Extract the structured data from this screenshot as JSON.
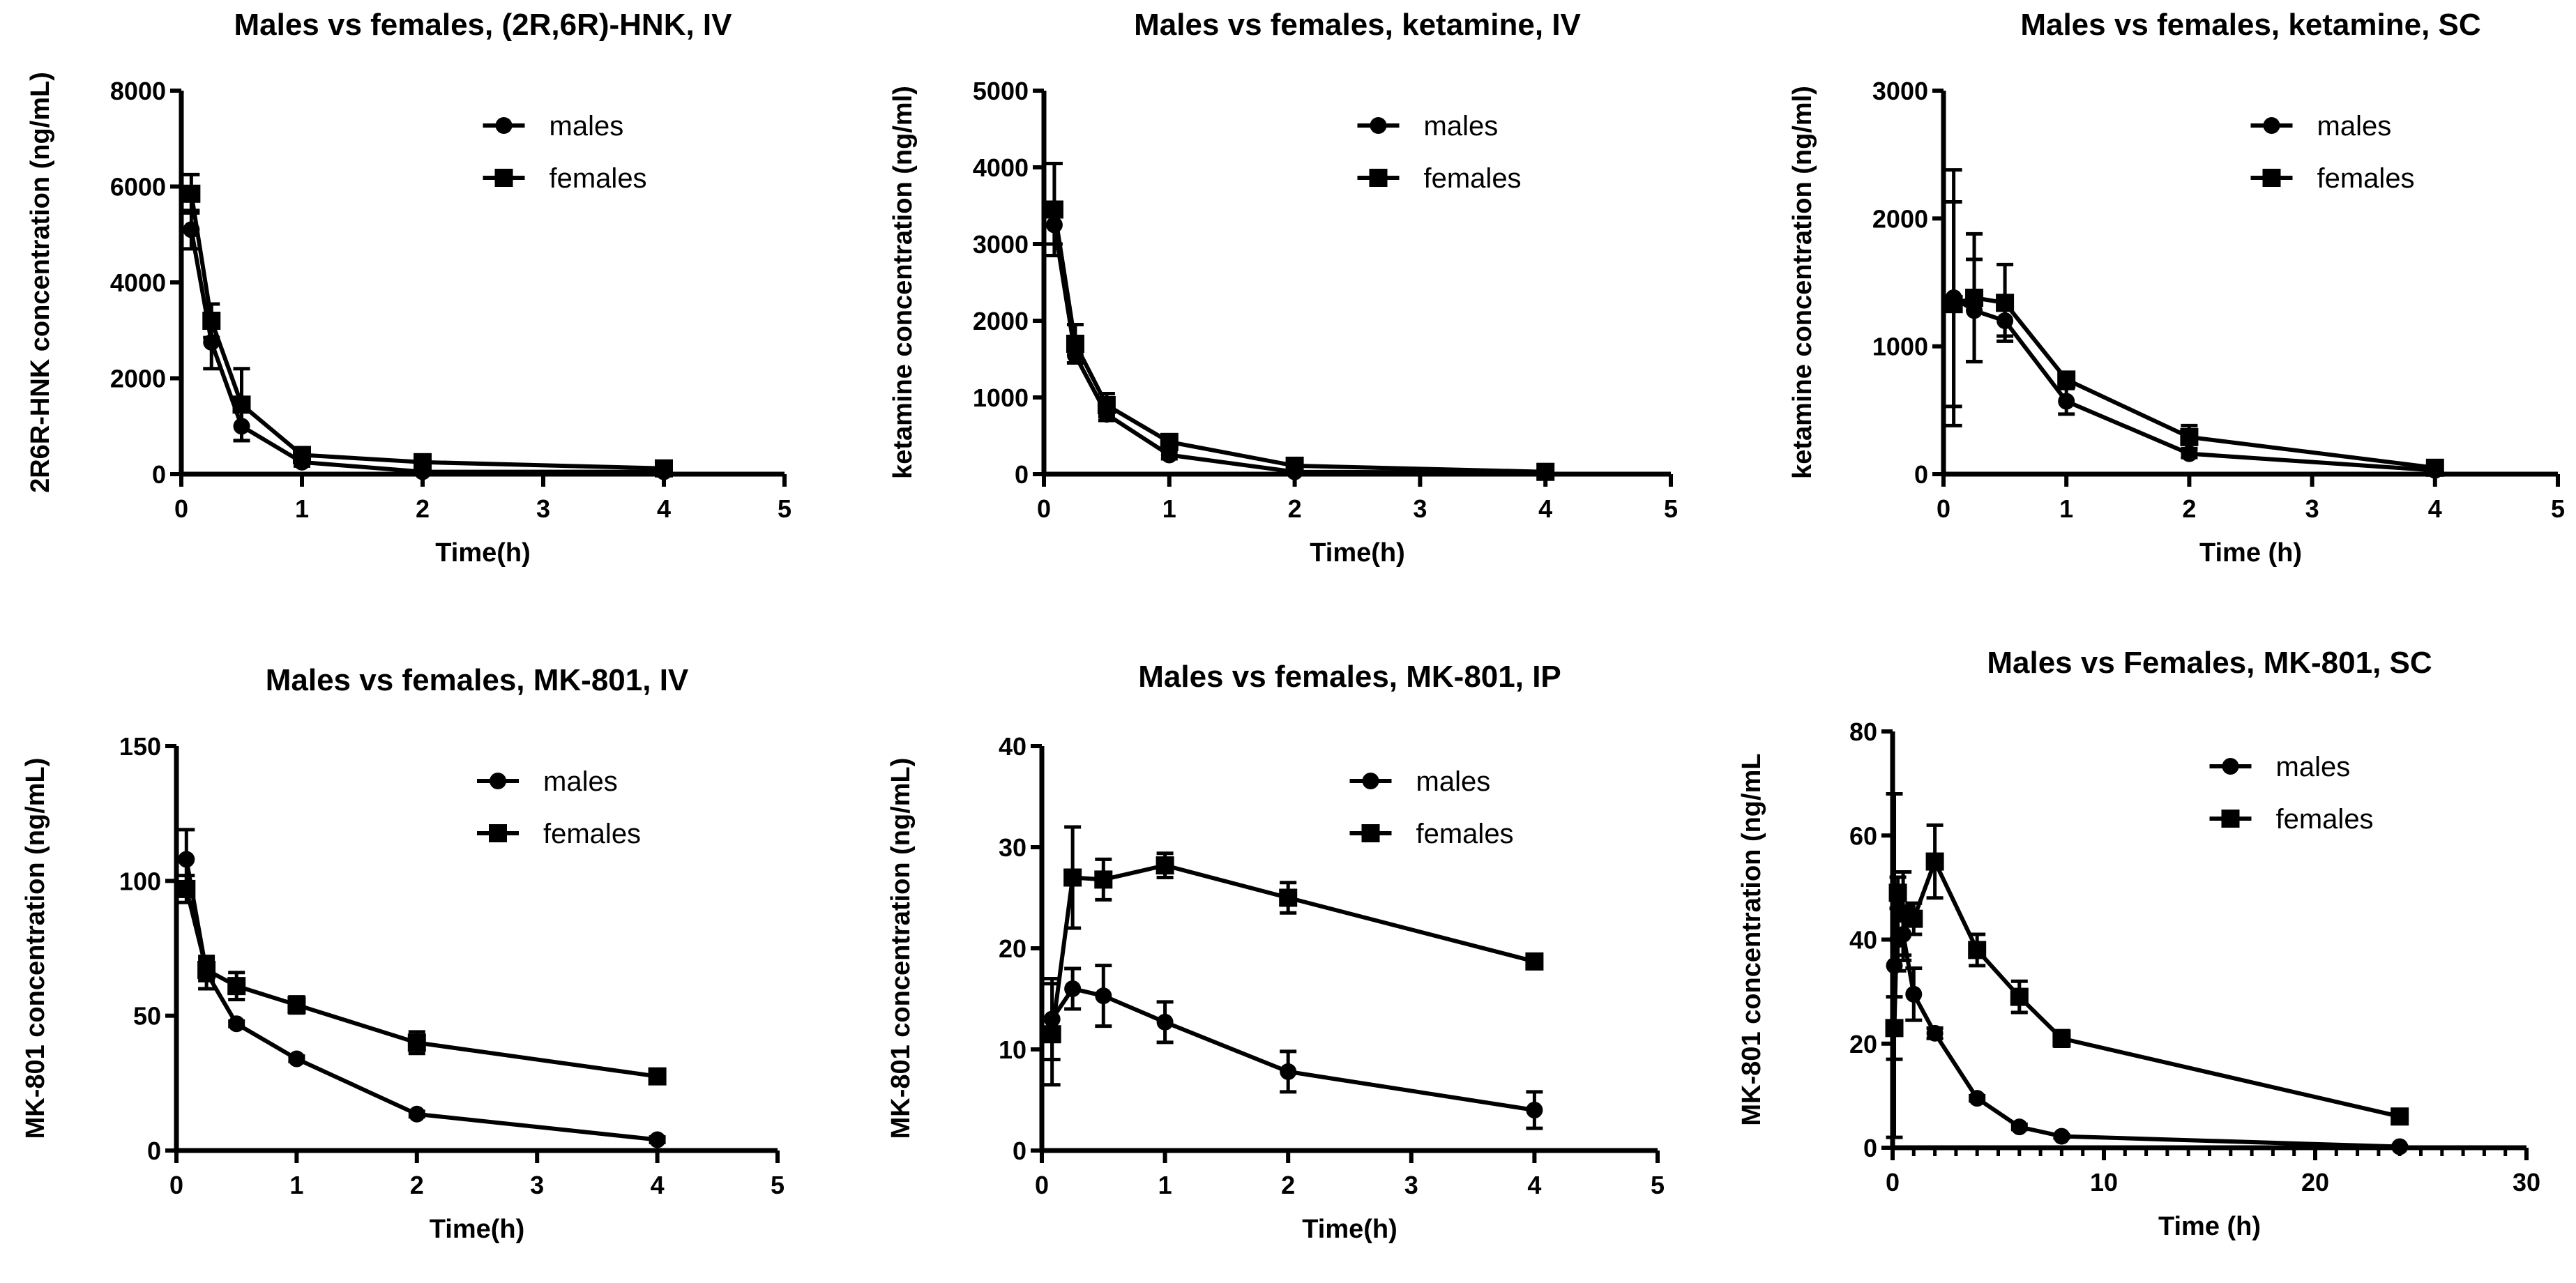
{
  "chart_data": [
    {
      "type": "line",
      "title": "Males vs females, (2R,6R)-HNK, IV",
      "xlabel": "Time(h)",
      "ylabel": "2R6R-HNK concentration (ng/mL)",
      "xlim": [
        0,
        5
      ],
      "ylim": [
        0,
        8000
      ],
      "xticks": [
        0,
        1,
        2,
        3,
        4,
        5
      ],
      "yticks": [
        0,
        2000,
        4000,
        6000,
        8000
      ],
      "legend": "top-right",
      "x": [
        0.083,
        0.25,
        0.5,
        1,
        2,
        4
      ],
      "series": [
        {
          "name": "males",
          "marker": "circle",
          "values": [
            5100,
            2750,
            1000,
            250,
            50,
            50
          ],
          "err": [
            400,
            550,
            300,
            80,
            30,
            20
          ]
        },
        {
          "name": "females",
          "marker": "square",
          "values": [
            5850,
            3200,
            1450,
            400,
            250,
            120
          ],
          "err": [
            400,
            350,
            750,
            80,
            60,
            40
          ]
        }
      ]
    },
    {
      "type": "line",
      "title": "Males vs females, ketamine, IV",
      "xlabel": "Time(h)",
      "ylabel": "ketamine concentration (ng/ml)",
      "xlim": [
        0,
        5
      ],
      "ylim": [
        0,
        5000
      ],
      "xticks": [
        0,
        1,
        2,
        3,
        4,
        5
      ],
      "yticks": [
        0,
        1000,
        2000,
        3000,
        4000,
        5000
      ],
      "legend": "top-right",
      "x": [
        0.083,
        0.25,
        0.5,
        1,
        2,
        4
      ],
      "series": [
        {
          "name": "males",
          "marker": "circle",
          "values": [
            3250,
            1550,
            780,
            250,
            30,
            20
          ],
          "err": [
            250,
            100,
            80,
            50,
            20,
            10
          ]
        },
        {
          "name": "females",
          "marker": "square",
          "values": [
            3450,
            1700,
            900,
            420,
            110,
            30
          ],
          "err": [
            600,
            250,
            150,
            60,
            40,
            15
          ]
        }
      ]
    },
    {
      "type": "line",
      "title": "Males vs females, ketamine, SC",
      "xlabel": "Time (h)",
      "ylabel": "ketamine concentration (ng/ml)",
      "xlim": [
        0,
        5
      ],
      "ylim": [
        0,
        3000
      ],
      "xticks": [
        0,
        1,
        2,
        3,
        4,
        5
      ],
      "yticks": [
        0,
        1000,
        2000,
        3000
      ],
      "legend": "top-right",
      "x": [
        0.083,
        0.25,
        0.5,
        1,
        2,
        4
      ],
      "series": [
        {
          "name": "males",
          "marker": "circle",
          "values": [
            1380,
            1280,
            1200,
            570,
            160,
            30
          ],
          "err": [
            1000,
            400,
            120,
            100,
            30,
            10
          ]
        },
        {
          "name": "females",
          "marker": "square",
          "values": [
            1330,
            1380,
            1340,
            740,
            290,
            50
          ],
          "err": [
            800,
            500,
            300,
            50,
            90,
            20
          ]
        }
      ]
    },
    {
      "type": "line",
      "title": "Males vs females, MK-801, IV",
      "xlabel": "Time(h)",
      "ylabel": "MK-801 concentration (ng/mL)",
      "xlim": [
        0,
        5
      ],
      "ylim": [
        0,
        150
      ],
      "xticks": [
        0,
        1,
        2,
        3,
        4,
        5
      ],
      "yticks": [
        0,
        50,
        100,
        150
      ],
      "legend": "top-right",
      "x": [
        0.083,
        0.25,
        0.5,
        1,
        2,
        4
      ],
      "series": [
        {
          "name": "males",
          "marker": "circle",
          "values": [
            108,
            66,
            47,
            34,
            13.5,
            4
          ],
          "err": [
            11,
            6,
            1,
            1,
            1,
            1
          ]
        },
        {
          "name": "females",
          "marker": "square",
          "values": [
            97,
            67,
            61,
            54,
            40,
            27.5
          ],
          "err": [
            5,
            4,
            5,
            3,
            4,
            1
          ]
        }
      ]
    },
    {
      "type": "line",
      "title": "Males vs females, MK-801, IP",
      "xlabel": "Time(h)",
      "ylabel": "MK-801 concentration (ng/mL)",
      "xlim": [
        0,
        5
      ],
      "ylim": [
        0,
        40
      ],
      "xticks": [
        0,
        1,
        2,
        3,
        4,
        5
      ],
      "yticks": [
        0,
        10,
        20,
        30,
        40
      ],
      "legend": "top-right",
      "x": [
        0.083,
        0.25,
        0.5,
        1,
        2,
        4
      ],
      "series": [
        {
          "name": "males",
          "marker": "circle",
          "values": [
            13,
            16,
            15.3,
            12.7,
            7.8,
            4
          ],
          "err": [
            4,
            2,
            3,
            2,
            2,
            1.8
          ]
        },
        {
          "name": "females",
          "marker": "square",
          "values": [
            11.5,
            27,
            26.8,
            28.2,
            25,
            18.7
          ],
          "err": [
            5,
            5,
            2,
            1.2,
            1.5,
            0.5
          ]
        }
      ]
    },
    {
      "type": "line",
      "title": "Males vs Females, MK-801, SC",
      "xlabel": "Time (h)",
      "ylabel": "MK-801 concentration (ng/mL",
      "xlim": [
        0,
        30
      ],
      "ylim": [
        0,
        80
      ],
      "xticks": [
        0,
        10,
        20,
        30
      ],
      "yticks": [
        0,
        20,
        40,
        60,
        80
      ],
      "minor_xticks": 1,
      "legend": "top-right",
      "x": [
        0.083,
        0.25,
        0.5,
        1,
        2,
        4,
        6,
        8,
        24
      ],
      "series": [
        {
          "name": "males",
          "marker": "circle",
          "values": [
            35,
            40,
            41,
            29.5,
            22,
            9.5,
            4,
            2.2,
            0.2
          ],
          "err": [
            33,
            6,
            5,
            5,
            1,
            0.5,
            0.5,
            0.3,
            0.2
          ]
        },
        {
          "name": "females",
          "marker": "square",
          "values": [
            23,
            49,
            45,
            44,
            55,
            38,
            29,
            21,
            6
          ],
          "err": [
            6,
            3,
            8,
            3,
            7,
            3,
            3,
            1.5,
            0.5
          ]
        }
      ]
    }
  ]
}
